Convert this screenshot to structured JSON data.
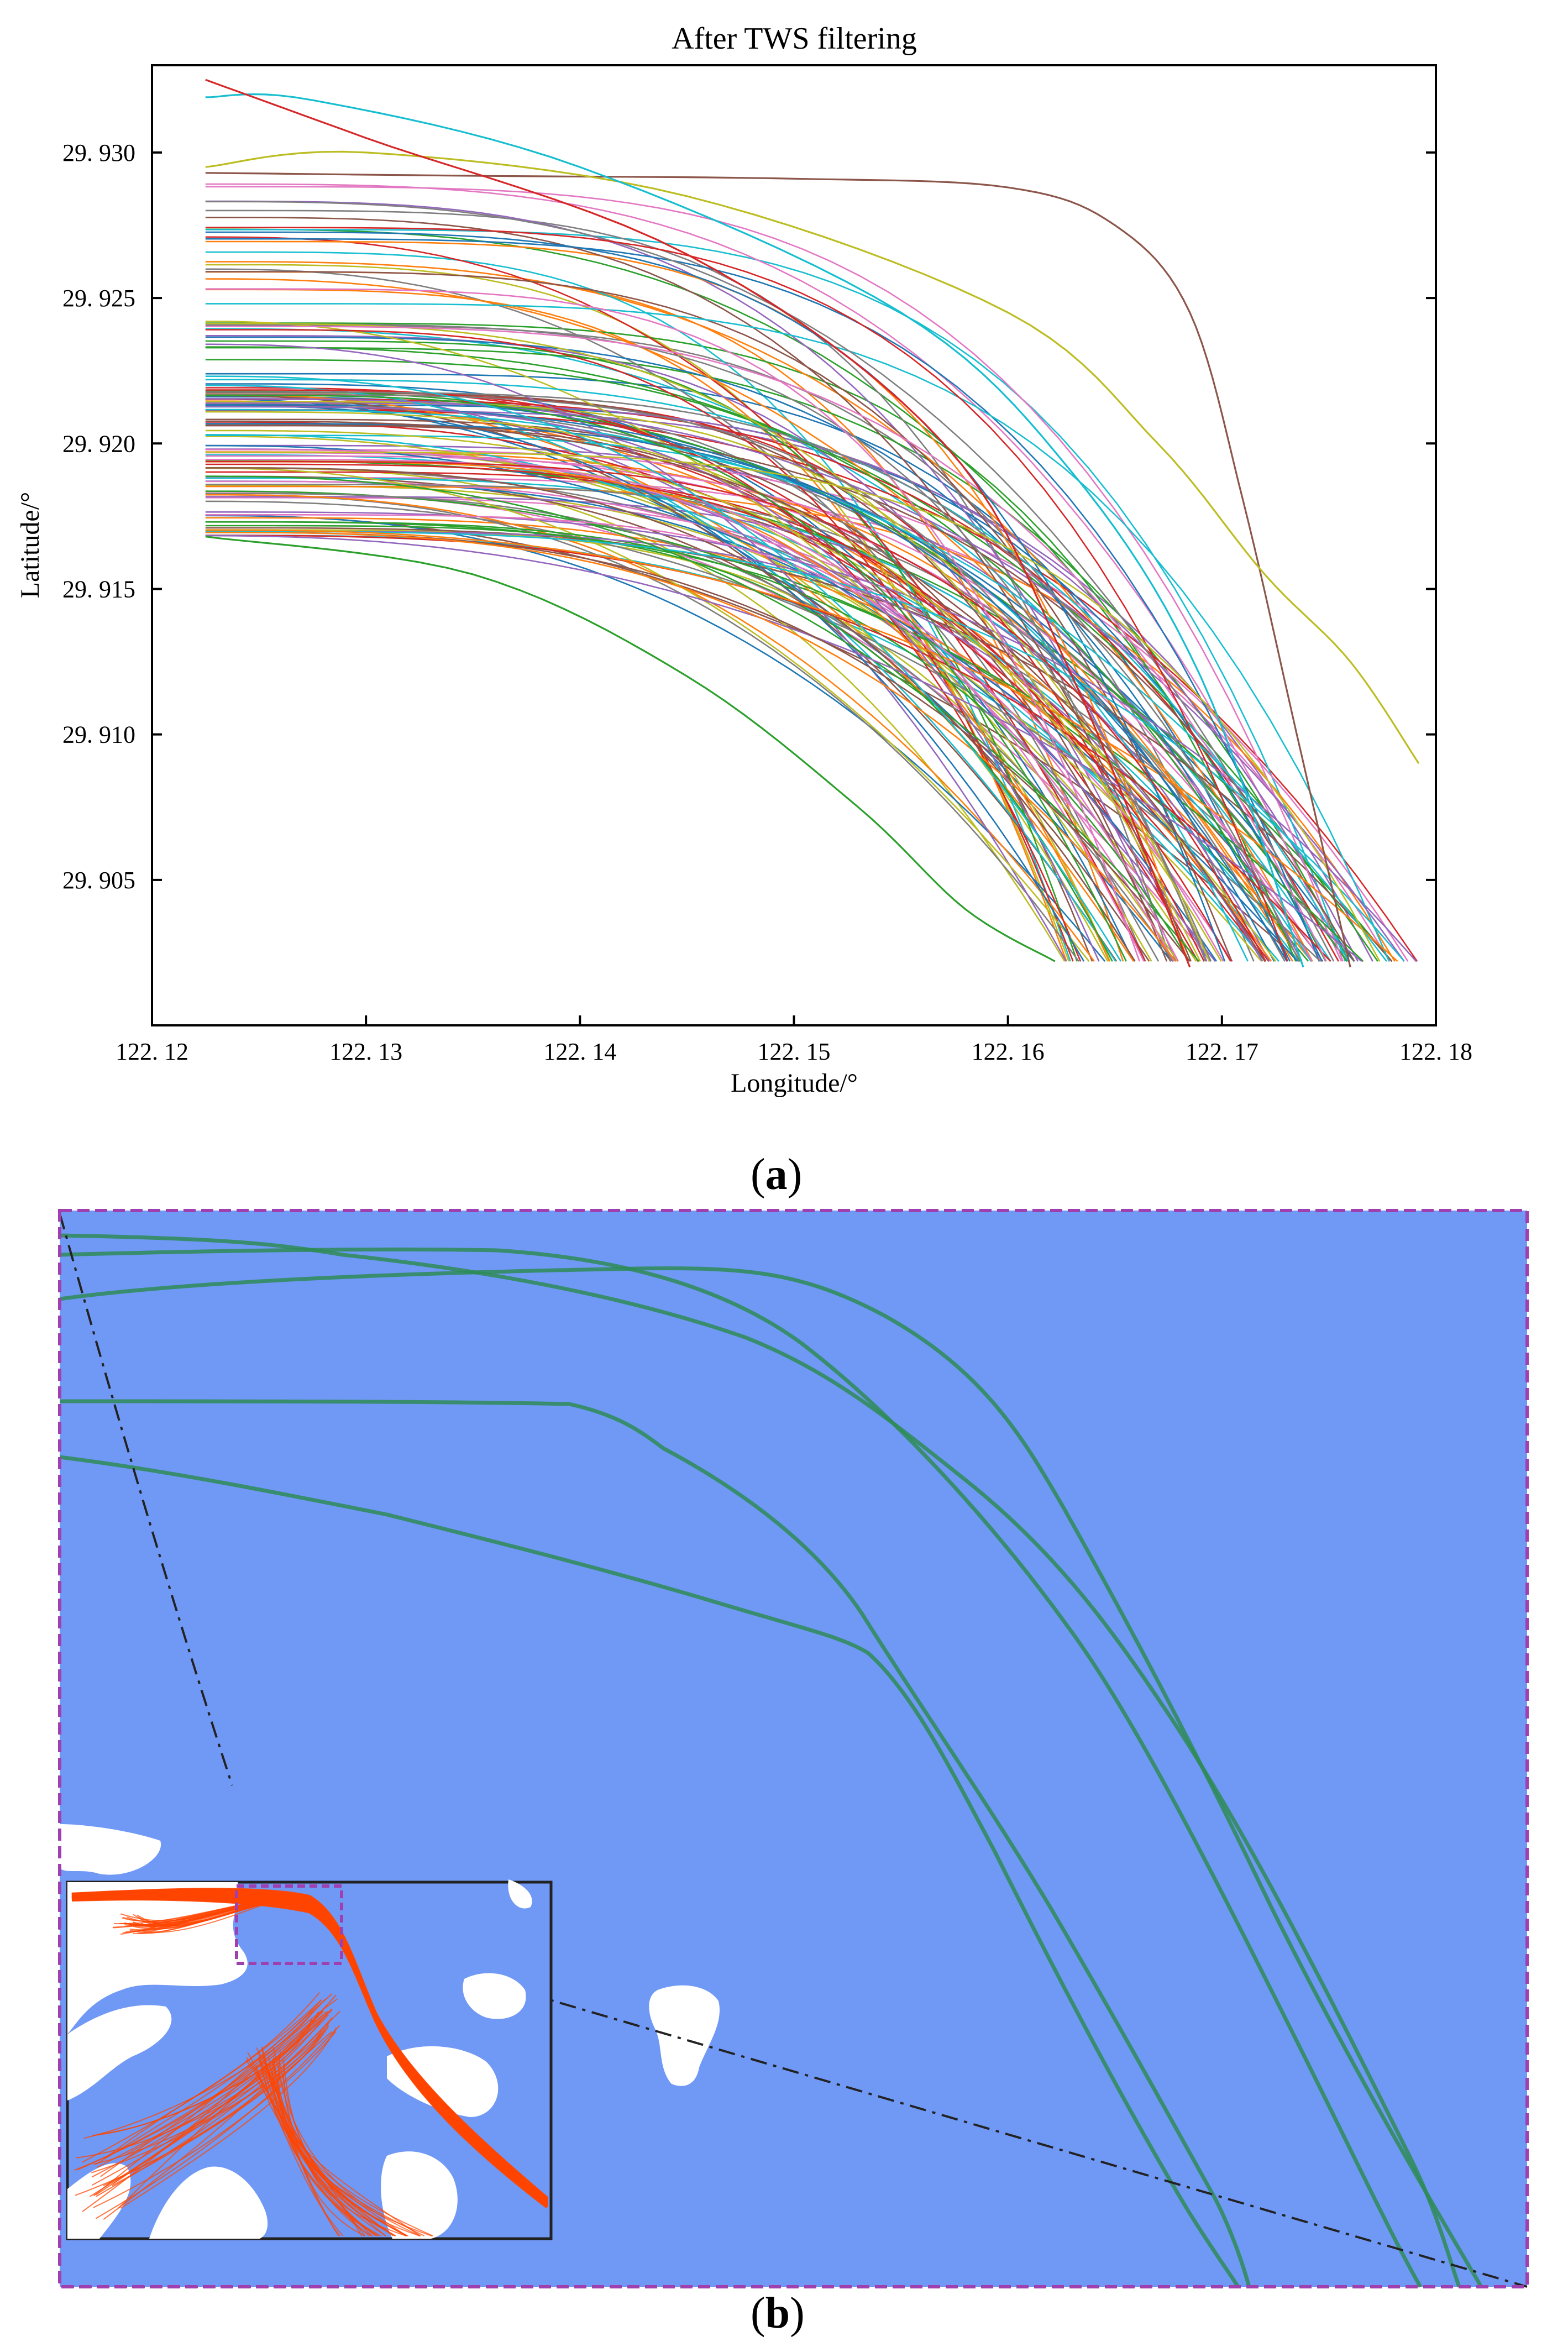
{
  "chart_data": [
    {
      "type": "line",
      "title": "After TWS filtering",
      "xlabel": "Longitude/°",
      "ylabel": "Latitude/°",
      "xlim": [
        122.12,
        122.18
      ],
      "ylim": [
        29.9,
        29.933
      ],
      "xticks": [
        "122. 12",
        "122. 13",
        "122. 14",
        "122. 15",
        "122. 16",
        "122. 17",
        "122. 18"
      ],
      "yticks": [
        "29. 905",
        "29. 910",
        "29. 915",
        "29. 920",
        "29. 925",
        "29. 930"
      ],
      "xtick_values": [
        122.12,
        122.13,
        122.14,
        122.15,
        122.16,
        122.17,
        122.18
      ],
      "ytick_values": [
        29.905,
        29.91,
        29.915,
        29.92,
        29.925,
        29.93
      ],
      "grid": false,
      "trajectory_count": 140,
      "x_start": 122.1225,
      "y_end": 29.9022,
      "start_latitude_range": [
        29.9168,
        29.9325
      ],
      "end_longitude_range": [
        122.1615,
        122.1792
      ],
      "highlighted_series": [
        {
          "color": "#8c564b",
          "x": [
            122.1225,
            122.135,
            122.15,
            122.16,
            122.165,
            122.1685,
            122.171,
            122.1735,
            122.176
          ],
          "y": [
            29.9293,
            29.9292,
            29.9291,
            29.9288,
            29.9275,
            29.9245,
            29.918,
            29.91,
            29.902
          ]
        },
        {
          "color": "#bcbd22",
          "x": [
            122.1225,
            122.13,
            122.145,
            122.16,
            122.167,
            122.172,
            122.176,
            122.1792
          ],
          "y": [
            29.9295,
            29.93,
            29.9285,
            29.9245,
            29.92,
            29.9155,
            29.9125,
            29.909
          ]
        },
        {
          "color": "#17becf",
          "x": [
            122.1225,
            122.1275,
            122.14,
            122.155,
            122.163,
            122.169,
            122.1738
          ],
          "y": [
            29.9319,
            29.9318,
            29.9295,
            29.9245,
            29.919,
            29.912,
            29.902
          ]
        },
        {
          "color": "#d62728",
          "x": [
            122.1225,
            122.13,
            122.145,
            122.157,
            122.163,
            122.1685
          ],
          "y": [
            29.9325,
            29.9305,
            29.9265,
            29.92,
            29.912,
            29.902
          ]
        },
        {
          "color": "#2ca02c",
          "x": [
            122.1225,
            122.135,
            122.145,
            122.153,
            122.158,
            122.1622
          ],
          "y": [
            29.9168,
            29.9155,
            29.912,
            29.9075,
            29.904,
            29.9022
          ]
        }
      ],
      "palette": [
        "#1f77b4",
        "#ff7f0e",
        "#2ca02c",
        "#d62728",
        "#9467bd",
        "#8c564b",
        "#e377c2",
        "#7f7f7f",
        "#bcbd22",
        "#17becf"
      ]
    },
    {
      "type": "map",
      "background_color": "#7098f5",
      "track_color": "#2e8b57",
      "inset_track_color": "#ff4500",
      "land_color": "#ffffff",
      "frame_color": "#a040b0"
    }
  ],
  "labels": {
    "a_letter": "a",
    "b_letter": "b"
  }
}
